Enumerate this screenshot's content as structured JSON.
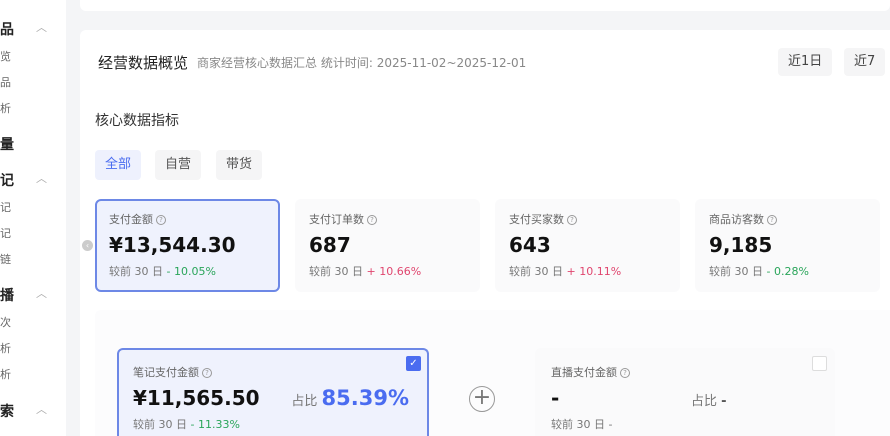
{
  "sidebar": {
    "items": [
      {
        "label": "品",
        "group": true,
        "chev": true
      },
      {
        "label": "览"
      },
      {
        "label": "品"
      },
      {
        "label": "析"
      },
      {
        "label": "量",
        "group": true
      },
      {
        "label": "记",
        "group": true,
        "chev": true
      },
      {
        "label": "记"
      },
      {
        "label": "记"
      },
      {
        "label": "链"
      },
      {
        "label": "播",
        "group": true,
        "chev": true
      },
      {
        "label": "次"
      },
      {
        "label": "析"
      },
      {
        "label": "析"
      },
      {
        "label": "索",
        "group": true,
        "chev": true
      }
    ]
  },
  "header": {
    "title": "经营数据概览",
    "subtitle": "商家经营核心数据汇总",
    "stat_time": "统计时间: 2025-11-02~2025-12-01",
    "date_buttons": [
      "近1日",
      "近7"
    ]
  },
  "section_title": "核心数据指标",
  "tabs": [
    {
      "label": "全部",
      "active": true
    },
    {
      "label": "自营"
    },
    {
      "label": "带货"
    }
  ],
  "metrics": [
    {
      "label": "支付金额",
      "value": "¥13,544.30",
      "cmp_label": "较前 30 日",
      "change": "- 10.05%",
      "dir": "down",
      "active": true
    },
    {
      "label": "支付订单数",
      "value": "687",
      "cmp_label": "较前 30 日",
      "change": "+ 10.66%",
      "dir": "up"
    },
    {
      "label": "支付买家数",
      "value": "643",
      "cmp_label": "较前 30 日",
      "change": "+ 10.11%",
      "dir": "up"
    },
    {
      "label": "商品访客数",
      "value": "9,185",
      "cmp_label": "较前 30 日",
      "change": "- 0.28%",
      "dir": "down"
    }
  ],
  "breakdown": [
    {
      "label": "笔记支付金额",
      "value": "¥11,565.50",
      "ratio_label": "占比",
      "ratio": "85.39%",
      "cmp_label": "较前 30 日",
      "change": "- 11.33%",
      "checked": true
    },
    {
      "label": "直播支付金额",
      "value": "-",
      "ratio_label": "占比",
      "ratio": "-",
      "cmp_label": "较前 30 日",
      "change": "-",
      "checked": false
    }
  ],
  "colors": {
    "accent": "#4a6cf0",
    "down": "#2aa55a",
    "up": "#e0456e"
  }
}
